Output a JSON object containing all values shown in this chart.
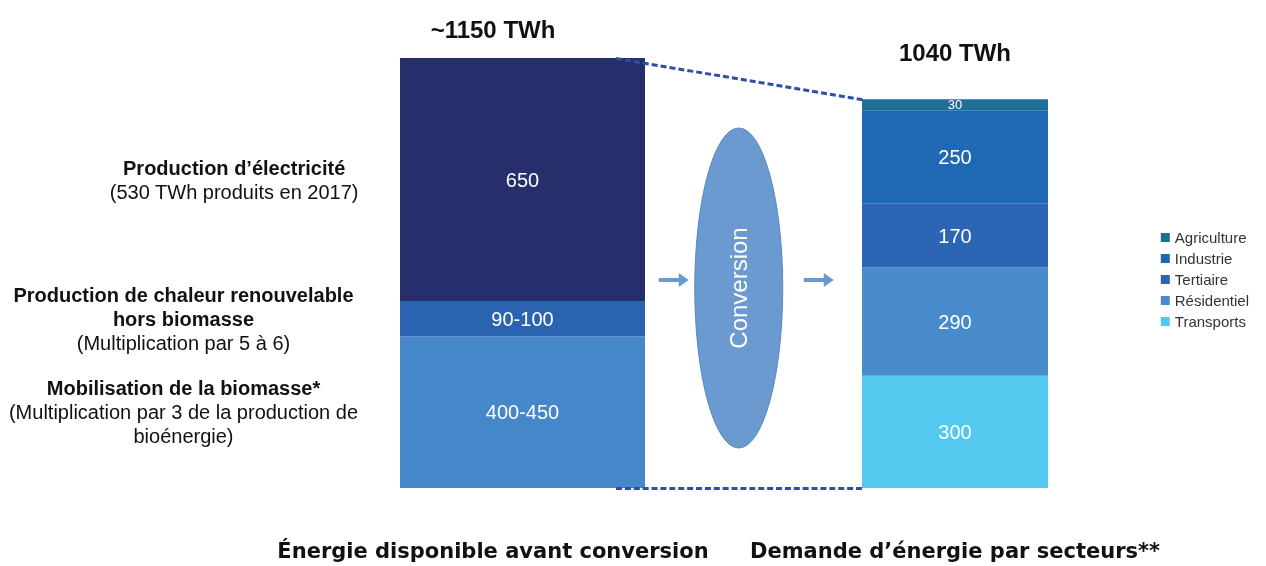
{
  "chart_data": {
    "type": "bar",
    "stacked": true,
    "tick_labels": "x",
    "legend": "right",
    "categories": [
      "Énergie disponible avant conversion",
      "Demande d’énergie par secteurs**"
    ],
    "series": [
      {
        "name": "Mobilisation de la biomasse* (Multiplication par 3 de la production de bioénergie)",
        "color": "#4587c8",
        "values": [
          405,
          null
        ],
        "value_labels": [
          "400-450",
          null
        ]
      },
      {
        "name": "Production de chaleur renouvelable hors biomasse (Multiplication par 5 à 6)",
        "color": "#2a63b0",
        "values": [
          95,
          null
        ],
        "value_labels": [
          "90-100",
          null
        ]
      },
      {
        "name": "Production d’électricité (530 TWh produits en 2017)",
        "color": "#262f6b",
        "values": [
          650,
          null
        ],
        "value_labels": [
          "650",
          null
        ]
      },
      {
        "name": "Transports",
        "color": "#55c8f0",
        "values": [
          null,
          300
        ],
        "value_labels": [
          null,
          "300"
        ]
      },
      {
        "name": "Résidentiel",
        "color": "#478bcb",
        "values": [
          null,
          290
        ],
        "value_labels": [
          null,
          "290"
        ]
      },
      {
        "name": "Tertiaire",
        "color": "#2b65b3",
        "values": [
          null,
          170
        ],
        "value_labels": [
          null,
          "170"
        ]
      },
      {
        "name": "Industrie",
        "color": "#1f68b4",
        "values": [
          null,
          250
        ],
        "value_labels": [
          null,
          "250"
        ]
      },
      {
        "name": "Agriculture",
        "color": "#1f6e98",
        "values": [
          null,
          30
        ],
        "value_labels": [
          null,
          "30"
        ]
      }
    ],
    "totals": [
      "~1150 TWh",
      "1040 TWh"
    ],
    "annotations": [
      "Conversion"
    ]
  }
}
